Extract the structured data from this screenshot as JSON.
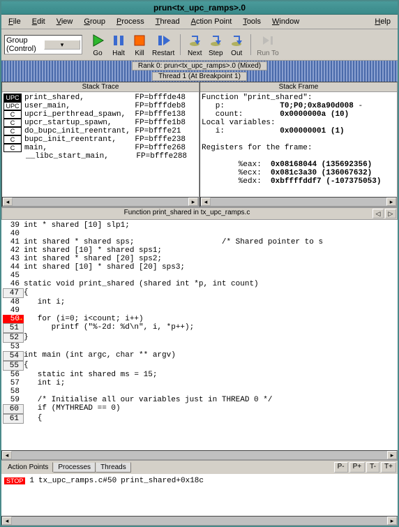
{
  "title": "prun<tx_upc_ramps>.0",
  "menus": [
    "File",
    "Edit",
    "View",
    "Group",
    "Process",
    "Thread",
    "Action Point",
    "Tools",
    "Window",
    "Help"
  ],
  "group_select": "Group (Control)",
  "toolbar": [
    {
      "label": "Go",
      "color": "#2eb82e",
      "shape": "play"
    },
    {
      "label": "Halt",
      "color": "#3a6ad0",
      "shape": "pause"
    },
    {
      "label": "Kill",
      "color": "#ff6a00",
      "shape": "square"
    },
    {
      "label": "Restart",
      "color": "#3a6ad0",
      "shape": "restart"
    },
    {
      "label": "Next",
      "color": "#8a8a2a",
      "shape": "step"
    },
    {
      "label": "Step",
      "color": "#8a8a2a",
      "shape": "step"
    },
    {
      "label": "Out",
      "color": "#8a8a2a",
      "shape": "step"
    },
    {
      "label": "Run To",
      "color": "#aaaaaa",
      "shape": "runto",
      "disabled": true
    }
  ],
  "rank_line": "Rank 0: prun<tx_upc_ramps>.0 (Mixed)",
  "thread_line": "Thread 1 (At Breakpoint 1)",
  "stack_trace_hdr": "Stack Trace",
  "stack_frame_hdr": "Stack Frame",
  "stack_trace": [
    {
      "tag": "UPC",
      "sel": true,
      "fn": "print_shared,",
      "fp": "FP=bfffde48"
    },
    {
      "tag": "UPC",
      "sel": false,
      "fn": "user_main,",
      "fp": "FP=bfffdeb8"
    },
    {
      "tag": "C",
      "sel": false,
      "fn": "upcri_perthread_spawn,",
      "fp": "FP=bfffe138"
    },
    {
      "tag": "C",
      "sel": false,
      "fn": "upcr_startup_spawn,",
      "fp": "FP=bfffe1b8"
    },
    {
      "tag": "C",
      "sel": false,
      "fn": "do_bupc_init_reentrant,",
      "fp": "FP=bfffe21"
    },
    {
      "tag": "C",
      "sel": false,
      "fn": "bupc_init_reentrant,",
      "fp": "FP=bfffe238"
    },
    {
      "tag": "C",
      "sel": false,
      "fn": "main,",
      "fp": "FP=bfffe268"
    },
    {
      "tag": "",
      "sel": false,
      "fn": "__libc_start_main,",
      "fp": "FP=bfffe288"
    }
  ],
  "stack_frame": [
    "Function \"print_shared\":",
    "   p:            T0;P0;0x8a90d008 -",
    "   count:        0x0000000a (10)",
    "Local variables:",
    "   i:            0x00000001 (1)",
    "",
    "Registers for the frame:",
    "",
    "        %eax:  0x08168044 (135692356)",
    "        %ecx:  0x081c3a30 (136067632)",
    "        %edx:  0xbffffddf7 (-107375053)"
  ],
  "src_hdr": "Function print_shared in tx_upc_ramps.c",
  "src_lines": [
    {
      "n": 39,
      "box": false,
      "stop": false,
      "txt": "int * shared [10] slp1;"
    },
    {
      "n": 40,
      "box": false,
      "stop": false,
      "txt": ""
    },
    {
      "n": 41,
      "box": false,
      "stop": false,
      "txt": "int shared * shared sps;                   /* Shared pointer to s"
    },
    {
      "n": 42,
      "box": false,
      "stop": false,
      "txt": "int shared [10] * shared sps1;"
    },
    {
      "n": 43,
      "box": false,
      "stop": false,
      "txt": "int shared * shared [20] sps2;"
    },
    {
      "n": 44,
      "box": false,
      "stop": false,
      "txt": "int shared [10] * shared [20] sps3;"
    },
    {
      "n": 45,
      "box": false,
      "stop": false,
      "txt": ""
    },
    {
      "n": 46,
      "box": false,
      "stop": false,
      "txt": "static void print_shared (shared int *p, int count)"
    },
    {
      "n": 47,
      "box": true,
      "stop": false,
      "txt": "{"
    },
    {
      "n": 48,
      "box": false,
      "stop": false,
      "txt": "   int i;"
    },
    {
      "n": 49,
      "box": false,
      "stop": false,
      "txt": ""
    },
    {
      "n": 50,
      "box": true,
      "stop": true,
      "txt": "   for (i=0; i<count; i++)"
    },
    {
      "n": 51,
      "box": true,
      "stop": false,
      "txt": "      printf (\"%-2d: %d\\n\", i, *p++);"
    },
    {
      "n": 52,
      "box": true,
      "stop": false,
      "txt": "}"
    },
    {
      "n": 53,
      "box": false,
      "stop": false,
      "txt": ""
    },
    {
      "n": 54,
      "box": true,
      "stop": false,
      "txt": "int main (int argc, char ** argv)"
    },
    {
      "n": 55,
      "box": true,
      "stop": false,
      "txt": "{"
    },
    {
      "n": 56,
      "box": false,
      "stop": false,
      "txt": "   static int shared ms = 15;"
    },
    {
      "n": 57,
      "box": false,
      "stop": false,
      "txt": "   int i;"
    },
    {
      "n": 58,
      "box": false,
      "stop": false,
      "txt": ""
    },
    {
      "n": 59,
      "box": false,
      "stop": false,
      "txt": "   /* Initialise all our variables just in THREAD 0 */"
    },
    {
      "n": 60,
      "box": true,
      "stop": false,
      "txt": "   if (MYTHREAD == 0)"
    },
    {
      "n": 61,
      "box": true,
      "stop": false,
      "txt": "   {"
    }
  ],
  "tabs": [
    "Action Points",
    "Processes",
    "Threads"
  ],
  "mini_btns": [
    "P-",
    "P+",
    "T-",
    "T+"
  ],
  "action_point": {
    "tag": "STOP",
    "num": "1",
    "loc": "tx_upc_ramps.c#50",
    "fn": "print_shared+0x18c"
  }
}
